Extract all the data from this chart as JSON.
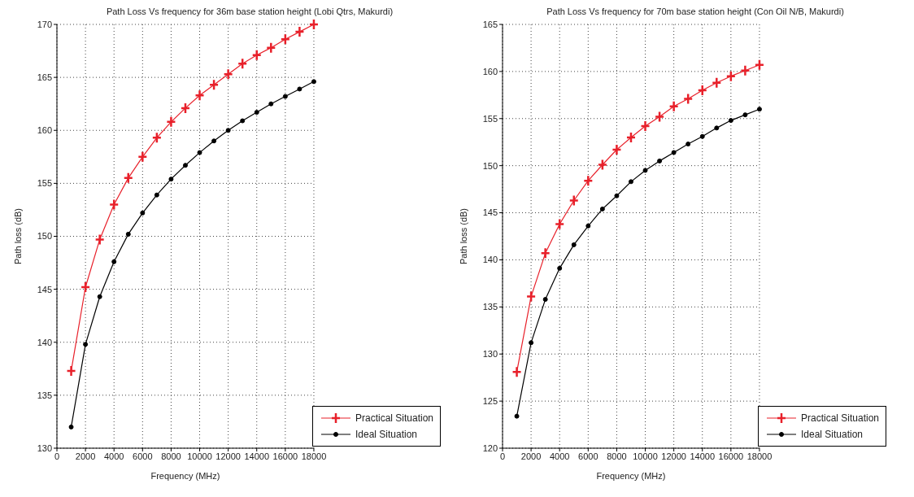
{
  "chart_data": [
    {
      "type": "line",
      "title": "Path Loss Vs frequency for 36m base station height (Lobi Qtrs, Makurdi)",
      "xlabel": "Frequency (MHz)",
      "ylabel": "Path loss (dB)",
      "x": [
        1000,
        2000,
        3000,
        4000,
        5000,
        6000,
        7000,
        8000,
        9000,
        10000,
        11000,
        12000,
        13000,
        14000,
        15000,
        16000,
        17000,
        18000
      ],
      "series": [
        {
          "name": "Practical Situation",
          "color": "#e8202a",
          "marker": "cross",
          "values": [
            137.3,
            145.2,
            149.7,
            153.0,
            155.5,
            157.5,
            159.3,
            160.8,
            162.1,
            163.3,
            164.3,
            165.3,
            166.3,
            167.1,
            167.8,
            168.6,
            169.3,
            170.0
          ]
        },
        {
          "name": "Ideal Situation",
          "color": "#000000",
          "marker": "circle",
          "values": [
            132.0,
            139.8,
            144.3,
            147.6,
            150.2,
            152.2,
            153.9,
            155.4,
            156.7,
            157.9,
            159.0,
            160.0,
            160.9,
            161.7,
            162.5,
            163.2,
            163.9,
            164.6
          ]
        }
      ],
      "xlim": [
        0,
        18000
      ],
      "xticks": [
        0,
        2000,
        4000,
        6000,
        8000,
        10000,
        12000,
        14000,
        16000,
        18000
      ],
      "ylim": [
        130,
        170
      ],
      "yticks": [
        130,
        135,
        140,
        145,
        150,
        155,
        160,
        165,
        170
      ],
      "grid": true,
      "legend": "bottom right"
    },
    {
      "type": "line",
      "title": "Path Loss Vs frequency for 70m base station height (Con Oil N/B, Makurdi)",
      "xlabel": "Frequency (MHz)",
      "ylabel": "Path loss (dB)",
      "x": [
        1000,
        2000,
        3000,
        4000,
        5000,
        6000,
        7000,
        8000,
        9000,
        10000,
        11000,
        12000,
        13000,
        14000,
        15000,
        16000,
        17000,
        18000
      ],
      "series": [
        {
          "name": "Practical Situation",
          "color": "#e8202a",
          "marker": "cross",
          "values": [
            128.1,
            136.1,
            140.7,
            143.8,
            146.3,
            148.4,
            150.1,
            151.7,
            153.0,
            154.2,
            155.2,
            156.3,
            157.1,
            158.0,
            158.8,
            159.5,
            160.1,
            160.7
          ]
        },
        {
          "name": "Ideal Situation",
          "color": "#000000",
          "marker": "circle",
          "values": [
            123.4,
            131.2,
            135.8,
            139.1,
            141.6,
            143.6,
            145.4,
            146.8,
            148.3,
            149.5,
            150.5,
            151.4,
            152.3,
            153.1,
            154.0,
            154.8,
            155.4,
            156.0
          ]
        }
      ],
      "xlim": [
        0,
        18000
      ],
      "xticks": [
        0,
        2000,
        4000,
        6000,
        8000,
        10000,
        12000,
        14000,
        16000,
        18000
      ],
      "ylim": [
        120,
        165
      ],
      "yticks": [
        120,
        125,
        130,
        135,
        140,
        145,
        150,
        155,
        160,
        165
      ],
      "grid": true,
      "legend": "bottom right"
    }
  ]
}
